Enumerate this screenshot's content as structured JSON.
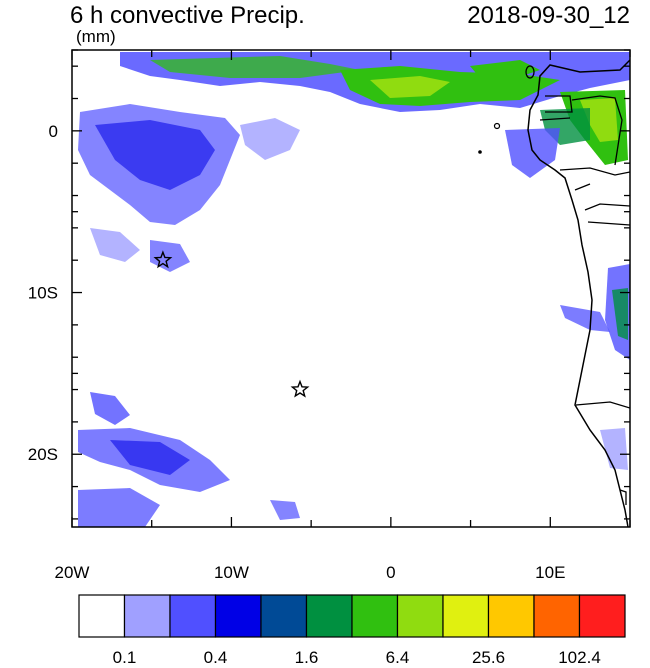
{
  "header": {
    "title": "6 h convective Precip.",
    "units": "(mm)",
    "datetime": "2018-09-30_12"
  },
  "map": {
    "lon_range": [
      -20,
      15
    ],
    "lat_range": [
      -24.5,
      5
    ],
    "x_tick_labels": [
      {
        "lon": -20,
        "label": "20W"
      },
      {
        "lon": -10,
        "label": "10W"
      },
      {
        "lon": 0,
        "label": "0"
      },
      {
        "lon": 10,
        "label": "10E"
      }
    ],
    "y_tick_labels": [
      {
        "lat": 0,
        "label": "0"
      },
      {
        "lat": -10,
        "label": "10S"
      },
      {
        "lat": -20,
        "label": "20S"
      }
    ],
    "stars": [
      {
        "name": "ascension-star",
        "lon": -14.3,
        "lat": -8.0
      },
      {
        "name": "st-helena-star",
        "lon": -5.7,
        "lat": -16.0
      }
    ]
  },
  "colorbar": {
    "colors": [
      "#ffffff",
      "#a0a0ff",
      "#5050ff",
      "#0000e6",
      "#004a96",
      "#009040",
      "#30c010",
      "#90dc10",
      "#e0f010",
      "#ffc800",
      "#ff6400",
      "#ff1e1e"
    ],
    "labels": [
      "0.1",
      "0.4",
      "1.6",
      "6.4",
      "25.6",
      "102.4"
    ]
  }
}
